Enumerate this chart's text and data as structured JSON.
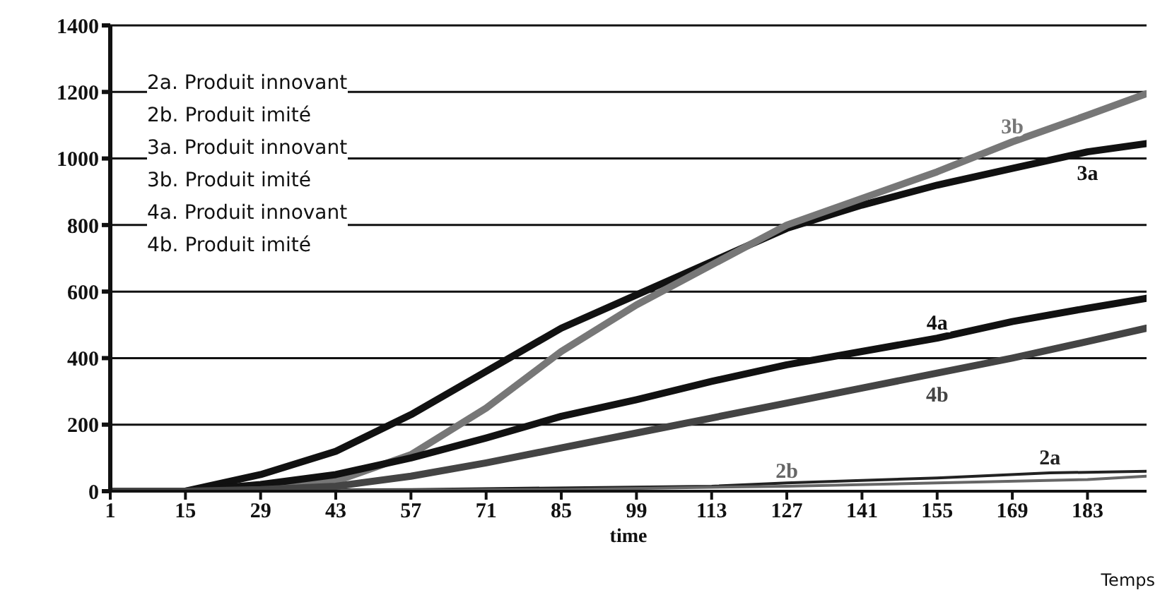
{
  "chart_data": {
    "type": "line",
    "xlabel": "time",
    "xlim": [
      1,
      194
    ],
    "xticks": [
      1,
      15,
      29,
      43,
      57,
      71,
      85,
      99,
      113,
      127,
      141,
      155,
      169,
      183
    ],
    "ylim": [
      0,
      1400
    ],
    "yticks": [
      0,
      200,
      400,
      600,
      800,
      1000,
      1200,
      1400
    ],
    "grid": "y",
    "marker": "none",
    "line_style": "solid",
    "series": [
      {
        "name": "2a",
        "color": "#222222",
        "x": [
          1,
          57,
          113,
          127,
          155,
          176,
          194
        ],
        "values": [
          0,
          5,
          15,
          25,
          40,
          55,
          60
        ]
      },
      {
        "name": "2b",
        "color": "#666666",
        "x": [
          1,
          85,
          127,
          155,
          183,
          194
        ],
        "values": [
          0,
          5,
          15,
          25,
          35,
          45
        ]
      },
      {
        "name": "3a",
        "color": "#111111",
        "x": [
          1,
          15,
          29,
          43,
          57,
          71,
          85,
          99,
          113,
          127,
          141,
          155,
          169,
          183,
          194
        ],
        "values": [
          0,
          0,
          50,
          120,
          230,
          360,
          490,
          590,
          690,
          790,
          860,
          920,
          970,
          1020,
          1045
        ]
      },
      {
        "name": "3b",
        "color": "#777777",
        "x": [
          1,
          29,
          43,
          57,
          71,
          85,
          99,
          113,
          127,
          141,
          155,
          169,
          183,
          194
        ],
        "values": [
          0,
          0,
          30,
          110,
          250,
          420,
          560,
          680,
          800,
          880,
          960,
          1050,
          1130,
          1195
        ]
      },
      {
        "name": "4a",
        "color": "#111111",
        "x": [
          1,
          15,
          29,
          43,
          57,
          71,
          85,
          99,
          113,
          127,
          141,
          155,
          169,
          183,
          194
        ],
        "values": [
          0,
          0,
          20,
          50,
          100,
          160,
          225,
          275,
          330,
          380,
          420,
          460,
          510,
          550,
          580
        ]
      },
      {
        "name": "4b",
        "color": "#444444",
        "x": [
          1,
          15,
          29,
          43,
          57,
          71,
          85,
          99,
          113,
          127,
          141,
          155,
          169,
          183,
          194
        ],
        "values": [
          0,
          0,
          5,
          15,
          45,
          85,
          130,
          175,
          220,
          265,
          310,
          355,
          400,
          450,
          490
        ]
      }
    ],
    "annotations": [
      "2a. Produit innovant",
      "2b. Produit imité",
      "3a. Produit innovant",
      "3b. Produit imité",
      "4a. Produit innovant",
      "4b. Produit imité",
      "Temps"
    ]
  }
}
